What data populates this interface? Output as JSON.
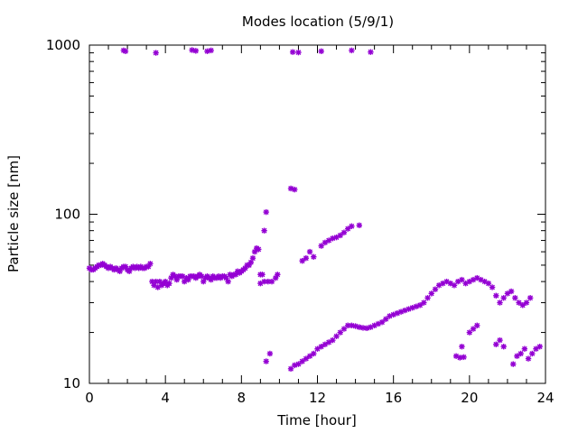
{
  "chart_data": {
    "type": "scatter",
    "title": "Modes location (5/9/1)",
    "xlabel": "Time [hour]",
    "ylabel": "Particle size [nm]",
    "xlim": [
      0,
      24
    ],
    "ylim": [
      10,
      1000
    ],
    "yscale": "log",
    "xticks": [
      0,
      4,
      8,
      12,
      16,
      20,
      24
    ],
    "yticks": [
      10,
      100,
      1000
    ],
    "grid": false,
    "legend": "none",
    "marker_color": "#9400d3",
    "marker": "asterisk",
    "series": [
      {
        "points": [
          [
            0.0,
            48
          ],
          [
            0.1,
            47
          ],
          [
            0.2,
            47
          ],
          [
            0.3,
            48
          ],
          [
            0.4,
            49
          ],
          [
            0.5,
            50
          ],
          [
            0.6,
            50
          ],
          [
            0.7,
            51
          ],
          [
            0.8,
            50
          ],
          [
            0.9,
            49
          ],
          [
            1.0,
            48
          ],
          [
            1.1,
            49
          ],
          [
            1.2,
            48
          ],
          [
            1.3,
            47
          ],
          [
            1.4,
            48
          ],
          [
            1.5,
            47
          ],
          [
            1.6,
            46
          ],
          [
            1.7,
            48
          ],
          [
            1.8,
            49
          ],
          [
            1.9,
            49
          ],
          [
            2.0,
            47
          ],
          [
            2.1,
            46
          ],
          [
            2.2,
            48
          ],
          [
            2.3,
            49
          ],
          [
            2.4,
            48
          ],
          [
            2.5,
            49
          ],
          [
            2.6,
            48
          ],
          [
            2.7,
            49
          ],
          [
            2.8,
            48
          ],
          [
            2.9,
            48
          ],
          [
            3.0,
            49
          ],
          [
            3.1,
            49
          ],
          [
            3.2,
            51
          ],
          [
            3.3,
            40
          ],
          [
            3.4,
            38
          ],
          [
            3.5,
            40
          ],
          [
            3.6,
            37
          ],
          [
            3.7,
            40
          ],
          [
            3.8,
            38
          ],
          [
            3.9,
            39
          ],
          [
            4.0,
            40
          ],
          [
            4.1,
            38
          ],
          [
            4.2,
            39
          ],
          [
            4.3,
            42
          ],
          [
            4.4,
            44
          ],
          [
            4.5,
            43
          ],
          [
            4.6,
            41
          ],
          [
            4.7,
            43
          ],
          [
            4.8,
            43
          ],
          [
            4.9,
            43
          ],
          [
            5.0,
            40
          ],
          [
            5.1,
            42
          ],
          [
            5.2,
            41
          ],
          [
            5.3,
            43
          ],
          [
            5.4,
            43
          ],
          [
            5.5,
            43
          ],
          [
            5.6,
            42
          ],
          [
            5.7,
            43
          ],
          [
            5.8,
            44
          ],
          [
            5.9,
            43
          ],
          [
            6.0,
            40
          ],
          [
            6.1,
            42
          ],
          [
            6.2,
            43
          ],
          [
            6.3,
            42
          ],
          [
            6.4,
            41
          ],
          [
            6.5,
            43
          ],
          [
            6.6,
            42
          ],
          [
            6.7,
            42
          ],
          [
            6.8,
            43
          ],
          [
            6.9,
            42
          ],
          [
            7.0,
            43
          ],
          [
            7.1,
            43
          ],
          [
            7.2,
            42
          ],
          [
            7.3,
            40
          ],
          [
            7.4,
            44
          ],
          [
            7.5,
            43
          ],
          [
            7.6,
            44
          ],
          [
            7.7,
            44
          ],
          [
            7.8,
            46
          ],
          [
            7.9,
            45
          ],
          [
            8.0,
            46
          ],
          [
            8.1,
            47
          ],
          [
            8.2,
            48
          ],
          [
            8.3,
            50
          ],
          [
            8.4,
            50
          ],
          [
            8.5,
            52
          ],
          [
            8.6,
            55
          ],
          [
            8.7,
            60
          ],
          [
            8.8,
            63
          ],
          [
            8.9,
            62
          ],
          [
            9.0,
            44
          ],
          [
            9.1,
            44
          ],
          [
            9.2,
            80
          ],
          [
            9.3,
            103
          ],
          [
            9.0,
            39
          ],
          [
            9.2,
            40
          ],
          [
            9.4,
            40
          ],
          [
            9.6,
            40
          ],
          [
            9.8,
            42
          ],
          [
            9.9,
            44
          ],
          [
            9.3,
            13.5
          ],
          [
            9.5,
            15
          ],
          [
            10.6,
            12.2
          ],
          [
            10.8,
            12.8
          ],
          [
            10.6,
            142
          ],
          [
            10.8,
            140
          ],
          [
            11.2,
            53
          ],
          [
            11.4,
            55
          ],
          [
            11.6,
            60
          ],
          [
            11.8,
            56
          ],
          [
            11.0,
            13
          ],
          [
            11.2,
            13.5
          ],
          [
            11.4,
            14
          ],
          [
            11.6,
            14.5
          ],
          [
            11.8,
            15
          ],
          [
            12.0,
            16
          ],
          [
            12.2,
            16.5
          ],
          [
            12.4,
            17
          ],
          [
            12.6,
            17.5
          ],
          [
            12.8,
            18
          ],
          [
            13.0,
            19
          ],
          [
            13.2,
            20
          ],
          [
            13.4,
            21
          ],
          [
            13.6,
            22
          ],
          [
            13.8,
            22
          ],
          [
            14.0,
            21.8
          ],
          [
            14.2,
            21.5
          ],
          [
            14.4,
            21.3
          ],
          [
            14.6,
            21.2
          ],
          [
            14.8,
            21.5
          ],
          [
            15.0,
            22
          ],
          [
            15.2,
            22.5
          ],
          [
            15.4,
            23
          ],
          [
            15.6,
            24
          ],
          [
            15.8,
            25
          ],
          [
            16.0,
            25.5
          ],
          [
            16.2,
            26
          ],
          [
            16.4,
            26.5
          ],
          [
            16.6,
            27
          ],
          [
            16.8,
            27.5
          ],
          [
            17.0,
            28
          ],
          [
            17.2,
            28.5
          ],
          [
            17.4,
            29
          ],
          [
            17.6,
            30
          ],
          [
            17.8,
            32
          ],
          [
            18.0,
            34
          ],
          [
            18.2,
            36
          ],
          [
            18.4,
            38
          ],
          [
            18.6,
            39
          ],
          [
            18.8,
            40
          ],
          [
            19.0,
            39
          ],
          [
            19.2,
            38
          ],
          [
            19.4,
            40
          ],
          [
            19.6,
            41
          ],
          [
            19.8,
            39
          ],
          [
            20.0,
            40
          ],
          [
            20.2,
            41
          ],
          [
            20.4,
            42
          ],
          [
            20.6,
            41
          ],
          [
            20.8,
            40
          ],
          [
            21.0,
            39
          ],
          [
            21.2,
            37
          ],
          [
            21.4,
            33
          ],
          [
            21.6,
            30
          ],
          [
            21.8,
            32
          ],
          [
            22.0,
            34
          ],
          [
            22.2,
            35
          ],
          [
            22.4,
            32
          ],
          [
            22.6,
            30
          ],
          [
            22.8,
            29
          ],
          [
            23.0,
            30
          ],
          [
            23.2,
            32
          ],
          [
            12.2,
            65
          ],
          [
            12.4,
            68
          ],
          [
            12.6,
            70
          ],
          [
            12.8,
            72
          ],
          [
            13.0,
            73
          ],
          [
            13.2,
            75
          ],
          [
            13.4,
            78
          ],
          [
            13.6,
            82
          ],
          [
            13.8,
            85
          ],
          [
            14.2,
            86
          ],
          [
            19.3,
            14.5
          ],
          [
            19.5,
            14.2
          ],
          [
            19.7,
            14.3
          ],
          [
            19.6,
            16.5
          ],
          [
            20.0,
            20
          ],
          [
            20.2,
            21
          ],
          [
            20.4,
            22
          ],
          [
            21.4,
            17
          ],
          [
            21.6,
            18
          ],
          [
            21.8,
            16.5
          ],
          [
            22.3,
            13
          ],
          [
            22.5,
            14.5
          ],
          [
            22.7,
            15
          ],
          [
            22.9,
            16
          ],
          [
            23.1,
            14
          ],
          [
            23.3,
            15
          ],
          [
            23.5,
            16
          ],
          [
            23.7,
            16.5
          ],
          [
            1.8,
            930
          ],
          [
            1.9,
            920
          ],
          [
            3.5,
            900
          ],
          [
            5.4,
            935
          ],
          [
            5.6,
            925
          ],
          [
            6.2,
            920
          ],
          [
            6.4,
            930
          ],
          [
            10.7,
            910
          ],
          [
            11.0,
            905
          ],
          [
            12.2,
            920
          ],
          [
            13.8,
            930
          ],
          [
            14.8,
            910
          ]
        ]
      }
    ]
  }
}
